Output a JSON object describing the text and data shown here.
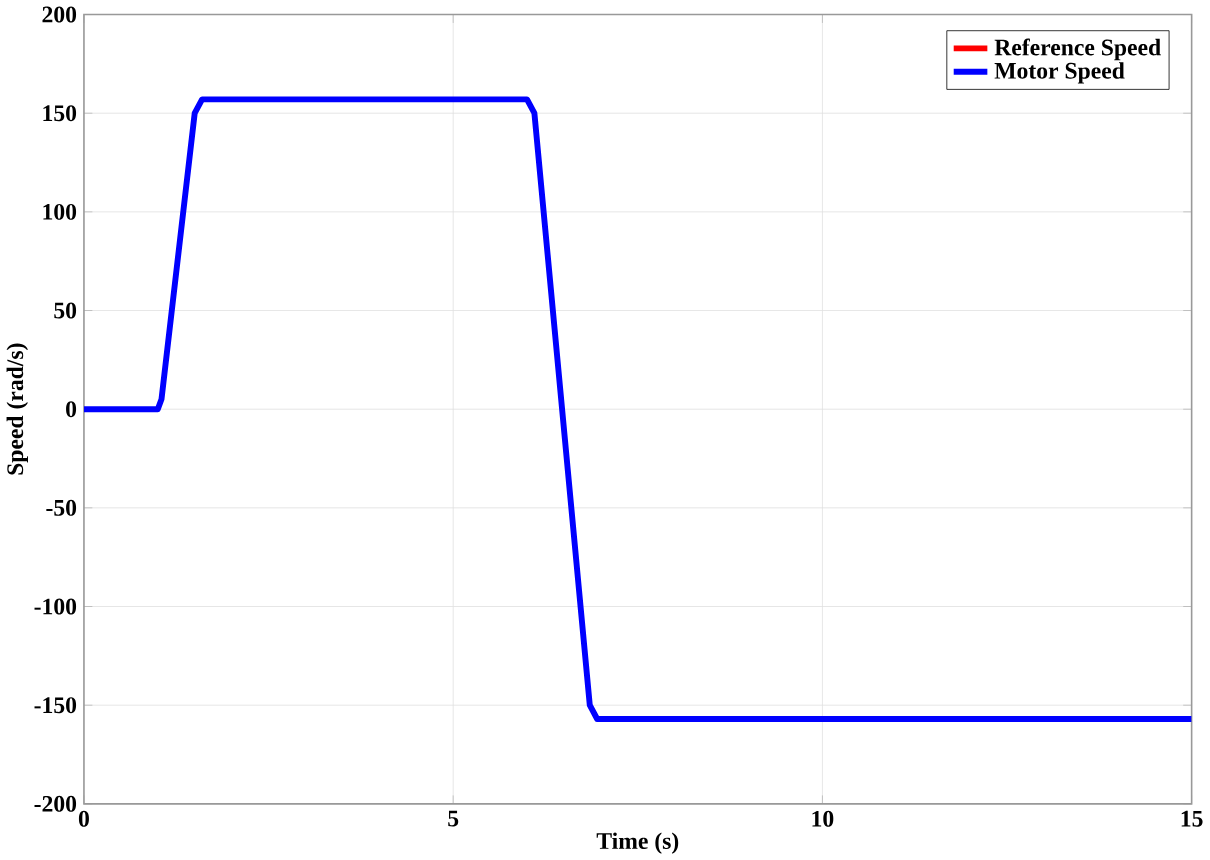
{
  "chart_data": {
    "type": "line",
    "xlabel": "Time (s)",
    "ylabel": "Speed (rad/s)",
    "x": [
      0,
      1,
      1.05,
      1.5,
      1.6,
      6,
      6.1,
      6.85,
      6.95,
      15
    ],
    "series": [
      {
        "name": "Reference Speed",
        "color": "#ff0000",
        "values": [
          null,
          null,
          null,
          null,
          null,
          null,
          null,
          null,
          null,
          null
        ]
      },
      {
        "name": "Motor Speed",
        "color": "#0000ff",
        "values": [
          0,
          0,
          5,
          150,
          157,
          157,
          150,
          -150,
          -157,
          -157
        ]
      }
    ],
    "xlim": [
      0,
      15
    ],
    "ylim": [
      -200,
      200
    ],
    "xticks": [
      0,
      5,
      10,
      15
    ],
    "yticks": [
      -200,
      -150,
      -100,
      -50,
      0,
      50,
      100,
      150,
      200
    ],
    "grid": true,
    "legend": "top right",
    "marker": "none",
    "line_style": "solid"
  }
}
